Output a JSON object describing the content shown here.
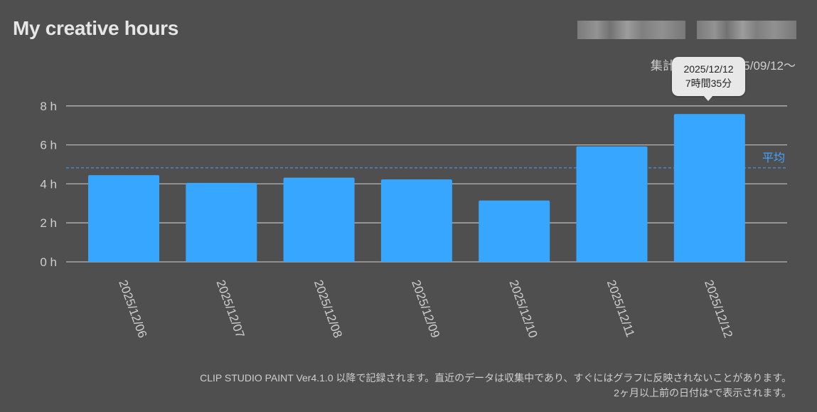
{
  "header": {
    "title": "My creative hours",
    "period_label": "集計開始日：2025/09/12〜"
  },
  "tooltip": {
    "date": "2025/12/12",
    "duration": "7時間35分"
  },
  "chart_data": {
    "type": "bar",
    "categories": [
      "2025/12/06",
      "2025/12/07",
      "2025/12/08",
      "2025/12/09",
      "2025/12/10",
      "2025/12/11",
      "2025/12/12"
    ],
    "values": [
      4.45,
      4.05,
      4.32,
      4.23,
      3.15,
      5.92,
      7.58
    ],
    "ylim": [
      0,
      8
    ],
    "yticks": [
      0,
      2,
      4,
      6,
      8
    ],
    "ytick_labels": [
      "0 h",
      "2 h",
      "4 h",
      "6 h",
      "8 h"
    ],
    "average": 4.82,
    "average_label": "平均",
    "grid": true,
    "colors": {
      "bar": "#36a6ff",
      "average_line": "#46a2ff",
      "grid": "#b4b4b4",
      "axis_text": "#cfcfcf"
    }
  },
  "footer": {
    "line1": "CLIP STUDIO PAINT Ver4.1.0 以降で記録されます。直近のデータは収集中であり、すぐにはグラフに反映されないことがあります。",
    "line2": "2ヶ月以上前の日付は*で表示されます。"
  }
}
